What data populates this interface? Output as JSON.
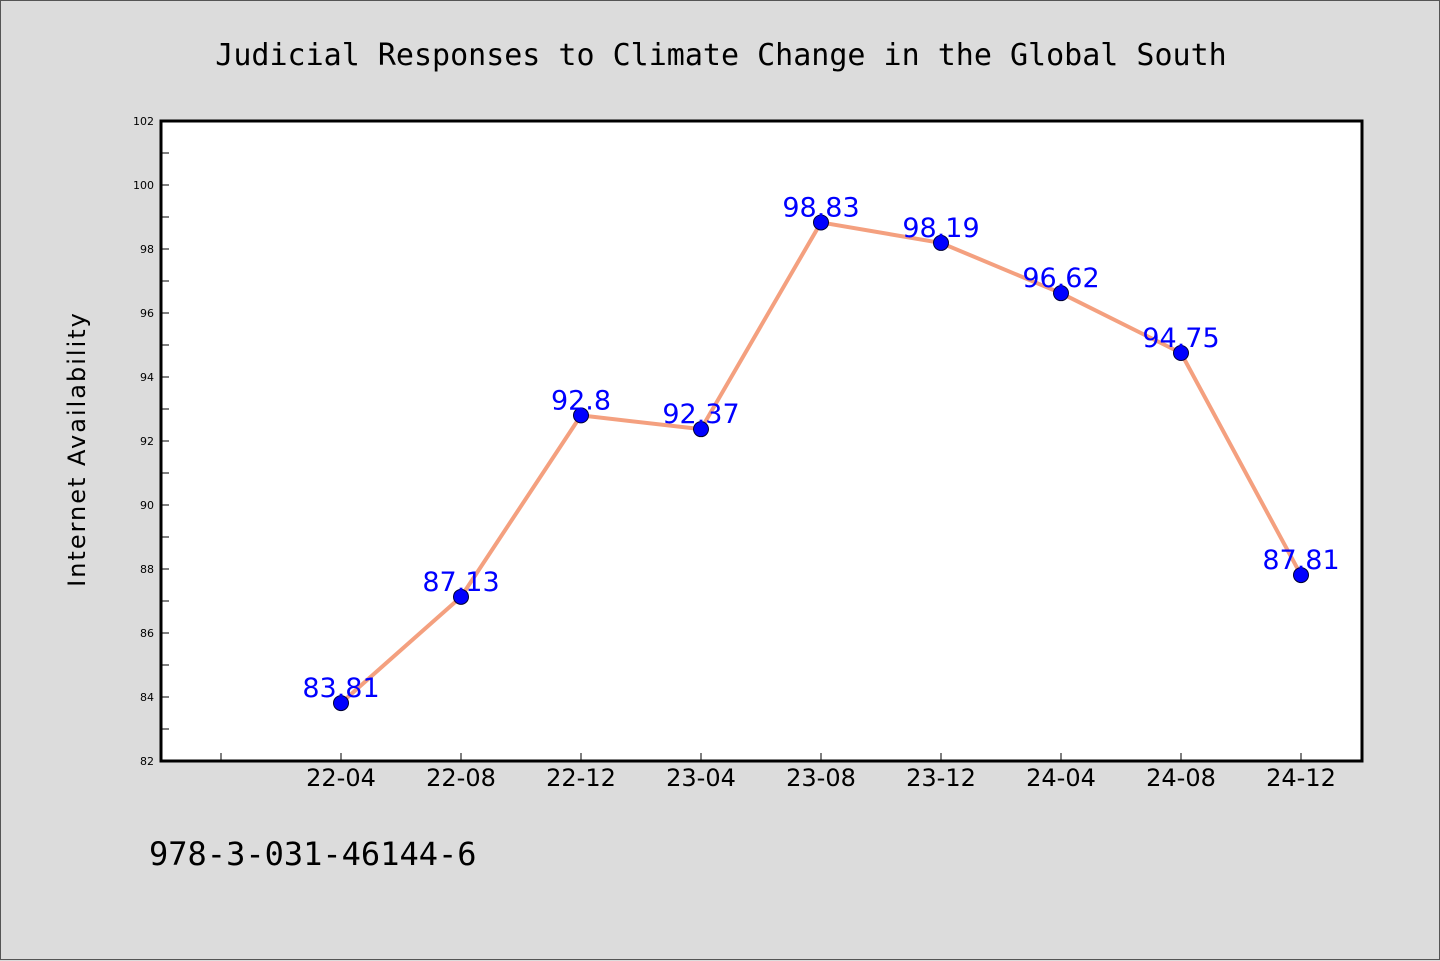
{
  "chart_data": {
    "type": "line",
    "title": "Judicial Responses to Climate Change in the Global South",
    "xlabel": "",
    "ylabel": "Internet Availability",
    "categories": [
      "22-04",
      "22-08",
      "22-12",
      "23-04",
      "23-08",
      "23-12",
      "24-04",
      "24-08",
      "24-12"
    ],
    "series": [
      {
        "values": [
          83.81,
          87.13,
          92.8,
          92.37,
          98.83,
          98.19,
          96.62,
          94.75,
          87.81
        ],
        "data_labels": [
          "83.81",
          "87.13",
          "92.8",
          "92.37",
          "98.83",
          "98.19",
          "96.62",
          "94.75",
          "87.81"
        ]
      }
    ],
    "ylim": [
      82,
      102
    ],
    "yticks": [
      "82",
      "84",
      "86",
      "88",
      "90",
      "92",
      "94",
      "96",
      "98",
      "100",
      "102"
    ],
    "grid": false,
    "legend": "none",
    "colors": {
      "line": "#f4a07f",
      "marker": "#0000ff",
      "data_label": "#0000ff",
      "background": "#dcdcdc",
      "plot_background": "#ffffff"
    }
  },
  "footer": {
    "isbn": "978-3-031-46144-6"
  }
}
